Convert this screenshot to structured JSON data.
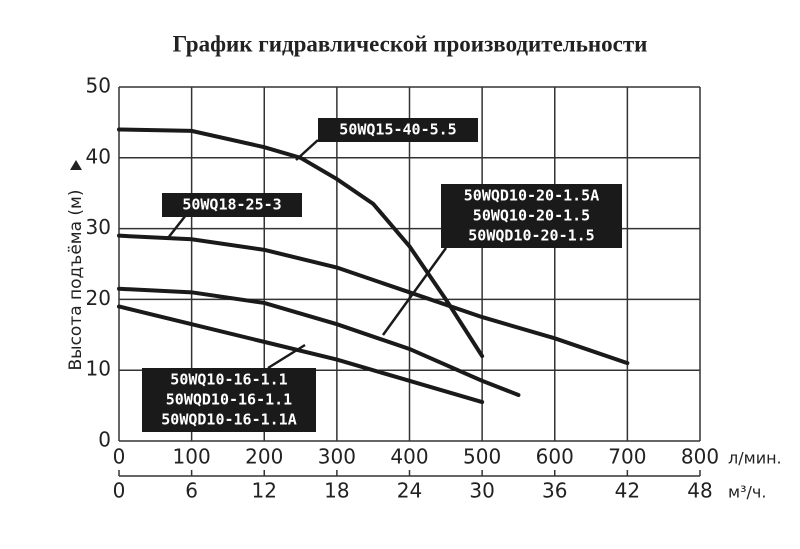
{
  "chart_data": {
    "type": "line",
    "title": "График гидравлической производительности",
    "ylabel": "Высота подъёма (м)",
    "xlabel": "л/мин.",
    "x2label": "м³/ч.",
    "xlim": [
      0,
      800
    ],
    "xticks": [
      0,
      100,
      200,
      300,
      400,
      500,
      600,
      700,
      800
    ],
    "x2lim": [
      0,
      48
    ],
    "x2ticks": [
      0,
      6,
      12,
      18,
      24,
      30,
      36,
      42,
      48
    ],
    "ylim": [
      0,
      50
    ],
    "yticks": [
      0,
      10,
      20,
      30,
      40,
      50
    ],
    "grid": true,
    "series": [
      {
        "name": "50WQ15-40-5.5",
        "color": "#1a1a1a",
        "x": [
          0,
          100,
          200,
          250,
          300,
          350,
          400,
          450,
          500
        ],
        "values": [
          44,
          43.8,
          41.5,
          40,
          37,
          33.5,
          27.5,
          20,
          12
        ]
      },
      {
        "name": "50WQ18-25-3",
        "color": "#1a1a1a",
        "x": [
          0,
          100,
          200,
          300,
          400,
          500,
          600,
          700
        ],
        "values": [
          29,
          28.5,
          27,
          24.5,
          21,
          17.5,
          14.5,
          11
        ]
      },
      {
        "name": "50WQD10-20-1.5",
        "color": "#1a1a1a",
        "x": [
          0,
          100,
          200,
          300,
          400,
          500,
          550
        ],
        "values": [
          21.5,
          21,
          19.5,
          16.5,
          13,
          8.5,
          6.5
        ]
      },
      {
        "name": "50WQ10-16-1.1",
        "color": "#1a1a1a",
        "x": [
          0,
          100,
          200,
          300,
          400,
          500
        ],
        "values": [
          19,
          16.5,
          14,
          11.5,
          8.5,
          5.5
        ]
      }
    ],
    "annotations": [
      {
        "lines": [
          "50WQ15-40-5.5"
        ]
      },
      {
        "lines": [
          "50WQ18-25-3"
        ]
      },
      {
        "lines": [
          "50WQD10-20-1.5A",
          "50WQ10-20-1.5",
          "50WQD10-20-1.5"
        ]
      },
      {
        "lines": [
          "50WQ10-16-1.1",
          "50WQD10-16-1.1",
          "50WQD10-16-1.1A"
        ]
      }
    ]
  }
}
